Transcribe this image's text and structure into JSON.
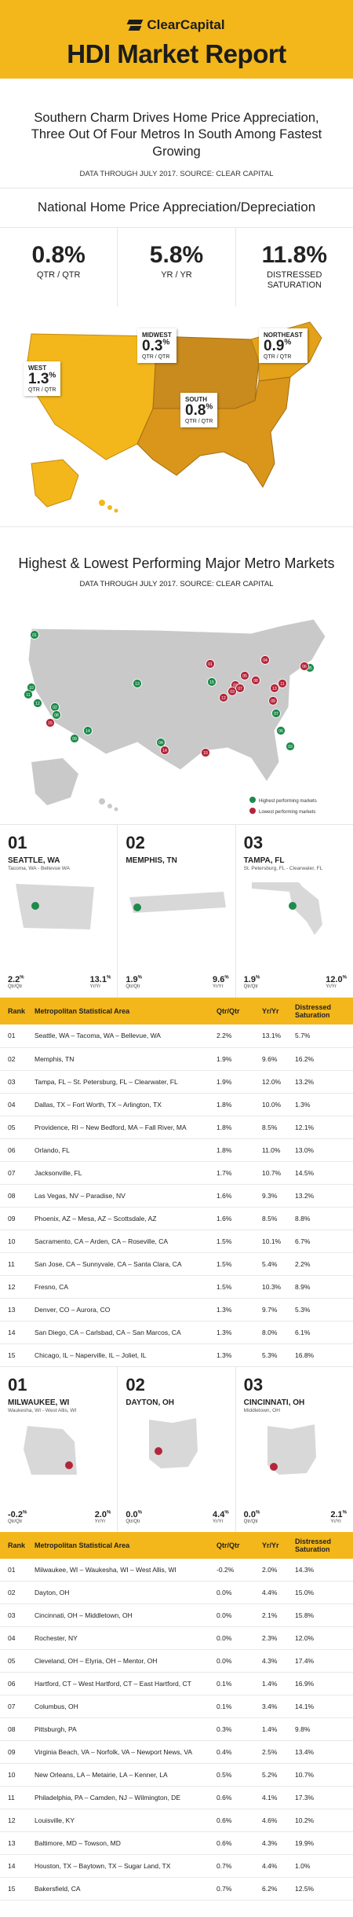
{
  "header": {
    "brand": "ClearCapital",
    "title": "HDI Market Report"
  },
  "headline": {
    "line1": "Southern Charm Drives Home Price Appreciation,",
    "line2": "Three Out Of Four Metros In South Among Fastest Growing",
    "source": "DATA THROUGH JULY 2017. SOURCE: CLEAR CAPITAL"
  },
  "national": {
    "title": "National Home Price Appreciation/Depreciation",
    "stats": [
      {
        "value": "0.8%",
        "label": "QTR / QTR"
      },
      {
        "value": "5.8%",
        "label": "YR / YR"
      },
      {
        "value": "11.8%",
        "label": "DISTRESSED SATURATION"
      }
    ],
    "regions": [
      {
        "name": "WEST",
        "value": "1.3",
        "unit": "%",
        "label": "QTR / QTR"
      },
      {
        "name": "MIDWEST",
        "value": "0.3",
        "unit": "%",
        "label": "QTR / QTR"
      },
      {
        "name": "NORTHEAST",
        "value": "0.9",
        "unit": "%",
        "label": "QTR / QTR"
      },
      {
        "name": "SOUTH",
        "value": "0.8",
        "unit": "%",
        "label": "QTR / QTR"
      }
    ],
    "colors": {
      "west": "#f3b71b",
      "midwest": "#c98a1e",
      "northeast": "#e3a21a",
      "south": "#d9961b"
    }
  },
  "metro": {
    "title": "Highest & Lowest Performing Major Metro Markets",
    "source": "DATA THROUGH JULY 2017. SOURCE: CLEAR CAPITAL",
    "legend_high": "Highest performing markets",
    "legend_low": "Lowest performing markets",
    "high_color": "#1e8a4c",
    "low_color": "#b3263a",
    "pins_high": [
      "01",
      "02",
      "03",
      "04",
      "05",
      "06",
      "07",
      "08",
      "09",
      "10",
      "11",
      "12",
      "13",
      "14",
      "15"
    ],
    "pins_low": [
      "01",
      "02",
      "03",
      "04",
      "05",
      "06",
      "07",
      "08",
      "09",
      "10",
      "11",
      "12",
      "13",
      "14",
      "15"
    ]
  },
  "top_highest": [
    {
      "rank": "01",
      "city": "SEATTLE, WA",
      "sub": "Tacoma, WA - Bellevue WA",
      "q": "2.2",
      "y": "13.1",
      "ql": "Qtr/Qtr",
      "yl": "Yr/Yr"
    },
    {
      "rank": "02",
      "city": "MEMPHIS, TN",
      "sub": "",
      "q": "1.9",
      "y": "9.6",
      "ql": "Qtr/Qtr",
      "yl": "Yr/Yr"
    },
    {
      "rank": "03",
      "city": "TAMPA, FL",
      "sub": "St. Petersburg, FL - Clearwater, FL",
      "q": "1.9",
      "y": "12.0",
      "ql": "Qtr/Qtr",
      "yl": "Yr/Yr"
    }
  ],
  "table_headers": {
    "rank": "Rank",
    "msa": "Metropolitan Statistical Area",
    "q": "Qtr/Qtr",
    "y": "Yr/Yr",
    "d": "Distressed Saturation"
  },
  "highest_rows": [
    [
      "01",
      "Seattle, WA – Tacoma, WA – Bellevue, WA",
      "2.2%",
      "13.1%",
      "5.7%"
    ],
    [
      "02",
      "Memphis, TN",
      "1.9%",
      "9.6%",
      "16.2%"
    ],
    [
      "03",
      "Tampa, FL – St. Petersburg, FL – Clearwater, FL",
      "1.9%",
      "12.0%",
      "13.2%"
    ],
    [
      "04",
      "Dallas, TX – Fort Worth, TX – Arlington, TX",
      "1.8%",
      "10.0%",
      "1.3%"
    ],
    [
      "05",
      "Providence, RI – New Bedford, MA – Fall River, MA",
      "1.8%",
      "8.5%",
      "12.1%"
    ],
    [
      "06",
      "Orlando, FL",
      "1.8%",
      "11.0%",
      "13.0%"
    ],
    [
      "07",
      "Jacksonville, FL",
      "1.7%",
      "10.7%",
      "14.5%"
    ],
    [
      "08",
      "Las Vegas, NV – Paradise, NV",
      "1.6%",
      "9.3%",
      "13.2%"
    ],
    [
      "09",
      "Phoenix, AZ – Mesa, AZ – Scottsdale, AZ",
      "1.6%",
      "8.5%",
      "8.8%"
    ],
    [
      "10",
      "Sacramento, CA – Arden, CA – Roseville, CA",
      "1.5%",
      "10.1%",
      "6.7%"
    ],
    [
      "11",
      "San Jose, CA – Sunnyvale, CA – Santa Clara, CA",
      "1.5%",
      "5.4%",
      "2.2%"
    ],
    [
      "12",
      "Fresno, CA",
      "1.5%",
      "10.3%",
      "8.9%"
    ],
    [
      "13",
      "Denver, CO – Aurora, CO",
      "1.3%",
      "9.7%",
      "5.3%"
    ],
    [
      "14",
      "San Diego, CA – Carlsbad, CA – San Marcos, CA",
      "1.3%",
      "8.0%",
      "6.1%"
    ],
    [
      "15",
      "Chicago, IL – Naperville, IL – Joliet, IL",
      "1.3%",
      "5.3%",
      "16.8%"
    ]
  ],
  "top_lowest": [
    {
      "rank": "01",
      "city": "MILWAUKEE, WI",
      "sub": "Waukesha, WI - West Allis, WI",
      "q": "-0.2",
      "y": "2.0",
      "ql": "Qtr/Qtr",
      "yl": "Yr/Yr"
    },
    {
      "rank": "02",
      "city": "DAYTON, OH",
      "sub": "",
      "q": "0.0",
      "y": "4.4",
      "ql": "Qtr/Qtr",
      "yl": "Yr/Yr"
    },
    {
      "rank": "03",
      "city": "CINCINNATI, OH",
      "sub": "Middletown, OH",
      "q": "0.0",
      "y": "2.1",
      "ql": "Qtr/Qtr",
      "yl": "Yr/Yr"
    }
  ],
  "lowest_rows": [
    [
      "01",
      "Milwaukee, WI – Waukesha, WI – West Allis, WI",
      "-0.2%",
      "2.0%",
      "14.3%"
    ],
    [
      "02",
      "Dayton, OH",
      "0.0%",
      "4.4%",
      "15.0%"
    ],
    [
      "03",
      "Cincinnati, OH – Middletown, OH",
      "0.0%",
      "2.1%",
      "15.8%"
    ],
    [
      "04",
      "Rochester, NY",
      "0.0%",
      "2.3%",
      "12.0%"
    ],
    [
      "05",
      "Cleveland, OH – Elyria, OH – Mentor, OH",
      "0.0%",
      "4.3%",
      "17.4%"
    ],
    [
      "06",
      "Hartford, CT – West Hartford, CT – East Hartford, CT",
      "0.1%",
      "1.4%",
      "16.9%"
    ],
    [
      "07",
      "Columbus, OH",
      "0.1%",
      "3.4%",
      "14.1%"
    ],
    [
      "08",
      "Pittsburgh, PA",
      "0.3%",
      "1.4%",
      "9.8%"
    ],
    [
      "09",
      "Virginia Beach, VA – Norfolk, VA – Newport News, VA",
      "0.4%",
      "2.5%",
      "13.4%"
    ],
    [
      "10",
      "New Orleans, LA – Metairie, LA – Kenner, LA",
      "0.5%",
      "5.2%",
      "10.7%"
    ],
    [
      "11",
      "Philadelphia, PA – Camden, NJ – Wilmington, DE",
      "0.6%",
      "4.1%",
      "17.3%"
    ],
    [
      "12",
      "Louisville, KY",
      "0.6%",
      "4.6%",
      "10.2%"
    ],
    [
      "13",
      "Baltimore, MD – Towson, MD",
      "0.6%",
      "4.3%",
      "19.9%"
    ],
    [
      "14",
      "Houston, TX – Baytown, TX – Sugar Land, TX",
      "0.7%",
      "4.4%",
      "1.0%"
    ],
    [
      "15",
      "Bakersfield, CA",
      "0.7%",
      "6.2%",
      "12.5%"
    ]
  ]
}
